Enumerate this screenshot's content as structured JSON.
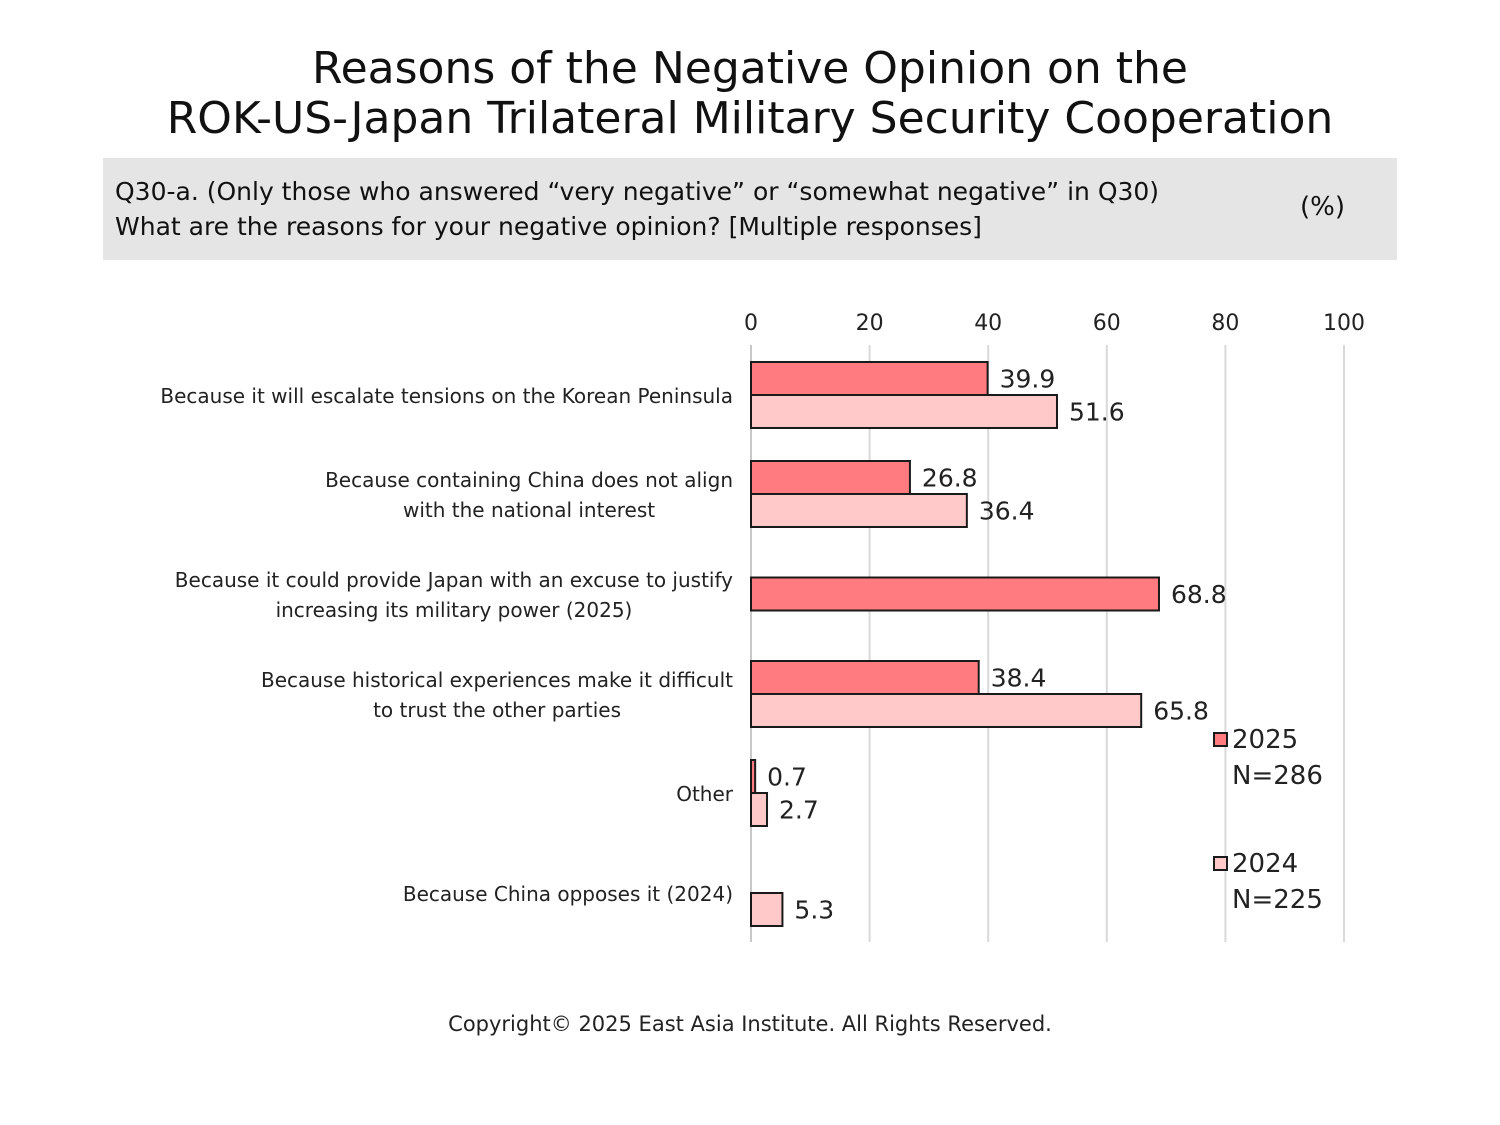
{
  "title": {
    "line1": "Reasons of the Negative Opinion on the",
    "line2": "ROK-US-Japan Trilateral Military Security Cooperation"
  },
  "question": {
    "line1": "Q30-a. (Only those who answered “very negative” or “somewhat negative” in Q30)",
    "line2": "What are the reasons for your negative opinion? [Multiple responses]",
    "unit": "(%)"
  },
  "chart_data": {
    "type": "bar",
    "orientation": "horizontal",
    "xlim": [
      0,
      100
    ],
    "ticks": [
      "0",
      "20",
      "40",
      "60",
      "80",
      "100"
    ],
    "grid": true,
    "legend_position": "right",
    "categories": [
      [
        "Because it will escalate tensions on the Korean Peninsula"
      ],
      [
        "Because containing China does not align",
        "with the national interest"
      ],
      [
        "Because it could provide Japan with an excuse to justify",
        "increasing its military power (2025)"
      ],
      [
        "Because historical experiences make it difficult",
        "to trust the other parties"
      ],
      [
        "Other"
      ],
      [
        "Because China opposes it (2024)"
      ]
    ],
    "series": [
      {
        "name": "2025",
        "n_label": "N=286",
        "color": "#ff7b7f",
        "values": [
          39.9,
          26.8,
          68.8,
          38.4,
          0.7,
          null
        ]
      },
      {
        "name": "2024",
        "n_label": "N=225",
        "color": "#ffc9ca",
        "values": [
          51.6,
          36.4,
          null,
          65.8,
          2.7,
          5.3
        ]
      }
    ]
  },
  "footer": "Copyright© 2025 East Asia Institute. All Rights Reserved."
}
